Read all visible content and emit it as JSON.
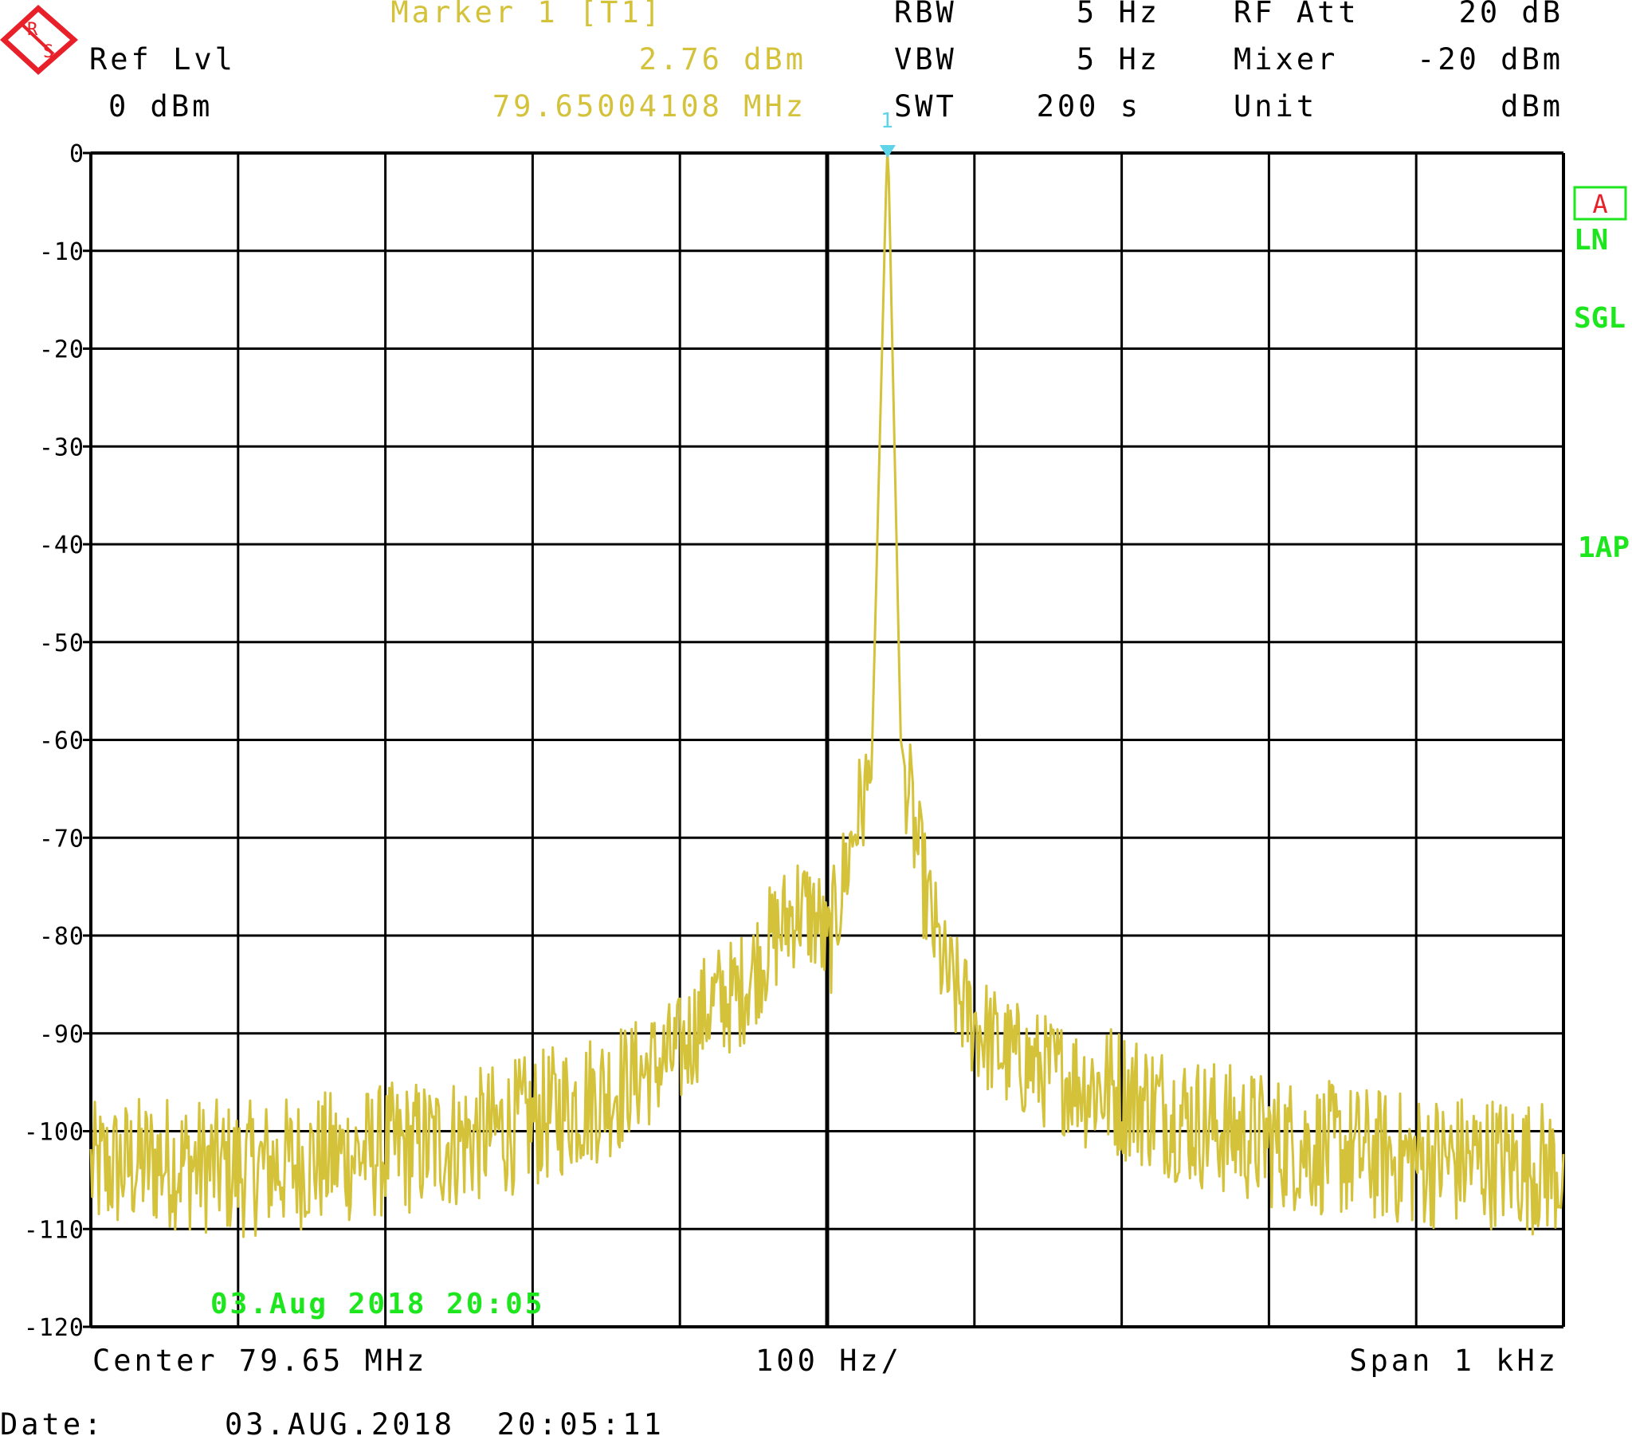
{
  "colors": {
    "background": "#ffffff",
    "grid": "#000000",
    "trace": "#d4c23a",
    "marker": "#5ed4e8",
    "status": "#1ee61e",
    "logo": "#e8202a",
    "text": "#000000"
  },
  "logo": {
    "name": "rohde-schwarz-logo",
    "letters": [
      "R",
      "S"
    ]
  },
  "header": {
    "ref_lvl_label": "Ref Lvl",
    "ref_lvl_value": "0 dBm",
    "marker_title": "Marker 1 [T1]",
    "marker_level": "2.76 dBm",
    "marker_freq": "79.65004108 MHz",
    "rbw_label": "RBW",
    "rbw_value": "5 Hz",
    "vbw_label": "VBW",
    "vbw_value": "5 Hz",
    "swt_label": "SWT",
    "swt_value": "200 s",
    "rfatt_label": "RF Att",
    "rfatt_value": "20 dB",
    "mixer_label": "Mixer",
    "mixer_value": "-20 dBm",
    "unit_label": "Unit",
    "unit_value": "dBm"
  },
  "side_panel": {
    "trace_box": "A",
    "ln": "LN",
    "sgl": "SGL",
    "detector": "1AP"
  },
  "footer": {
    "center": "Center 79.65 MHz",
    "per_div": "100 Hz/",
    "span": "Span 1 kHz",
    "date_label": "Date:",
    "date_value": "03.AUG.2018  20:05:11",
    "timestamp_overlay": "03.Aug 2018 20:05"
  },
  "chart_data": {
    "type": "line",
    "title": "",
    "xlabel": "",
    "ylabel": "",
    "xlim": [
      79.6495,
      79.6505
    ],
    "ylim": [
      -120,
      0
    ],
    "x_unit": "MHz",
    "y_unit": "dBm",
    "grid": true,
    "y_tick_labels": [
      "0",
      "-10",
      "-20",
      "-30",
      "-40",
      "-50",
      "-60",
      "-70",
      "-80",
      "-90",
      "-100",
      "-110",
      "-120"
    ],
    "marker": {
      "label": "1",
      "x": 79.65004108,
      "y": 2.76
    },
    "series": [
      {
        "x": [
          79.6495,
          79.64955,
          79.6496,
          79.64965,
          79.6497,
          79.64975,
          79.6498,
          79.64985,
          79.6499,
          79.64992,
          79.64994,
          79.64996,
          79.64998,
          79.64999,
          79.649995,
          79.65,
          79.65002,
          79.65003,
          79.65004108,
          79.65005,
          79.65006,
          79.65007,
          79.65008,
          79.6501,
          79.65012,
          79.65015,
          79.6502,
          79.65025,
          79.6503,
          79.65035,
          79.6504,
          79.65045,
          79.6505
        ],
        "y": [
          -104,
          -103,
          -104,
          -103,
          -102,
          -101,
          -99,
          -96,
          -92,
          -87,
          -86,
          -81,
          -77,
          -78,
          -79,
          -82,
          -68,
          -64,
          2.76,
          -60,
          -70,
          -78,
          -84,
          -89,
          -92,
          -94,
          -96,
          -99,
          -101,
          -102,
          -103,
          -103,
          -104
        ]
      }
    ]
  }
}
